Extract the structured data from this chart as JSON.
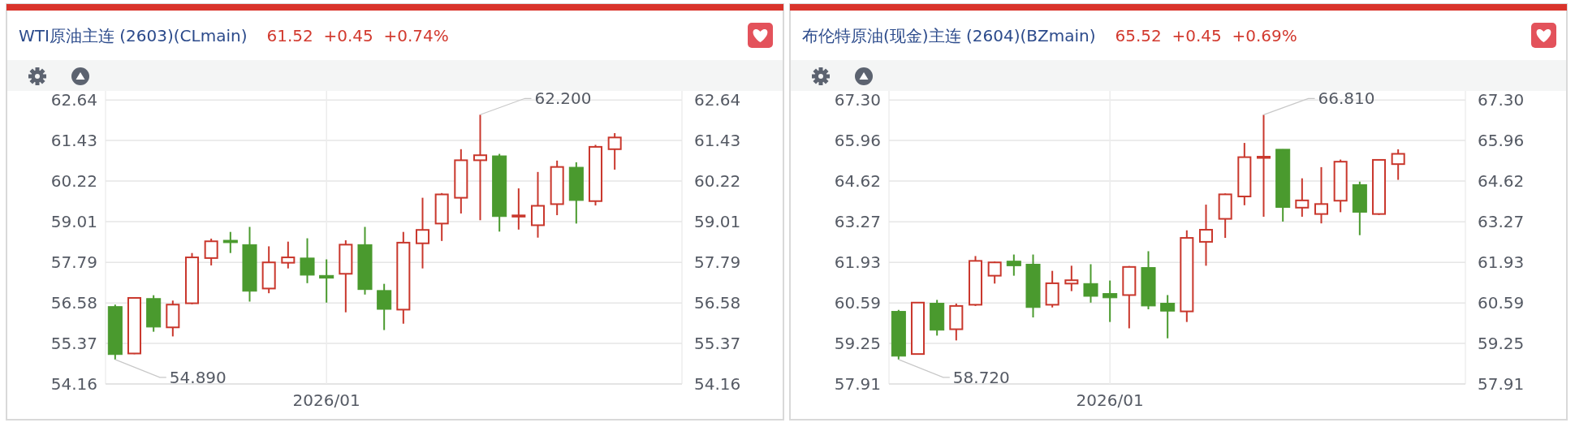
{
  "chart_data": [
    {
      "type": "candlestick",
      "title": "WTI原油主连 (2603)(CLmain)",
      "subtitle": "61.52  +0.45  +0.74%",
      "annotations": [
        "62.200",
        "54.890"
      ],
      "categories": [
        null,
        null,
        null,
        null,
        null,
        null,
        null,
        null,
        null,
        null,
        null,
        "2026/01",
        null,
        null,
        null,
        null,
        null,
        null,
        null,
        null,
        null,
        null,
        null,
        null,
        null,
        null,
        null,
        null,
        null,
        null
      ],
      "ohlc": [
        [
          56.47,
          56.53,
          54.89,
          55.04
        ],
        [
          55.07,
          56.75,
          55.05,
          56.73
        ],
        [
          56.71,
          56.81,
          55.72,
          55.86
        ],
        [
          55.85,
          56.65,
          55.58,
          56.53
        ],
        [
          56.57,
          58.07,
          56.54,
          57.94
        ],
        [
          57.92,
          58.5,
          57.7,
          58.42
        ],
        [
          58.45,
          58.7,
          58.07,
          58.38
        ],
        [
          58.32,
          58.85,
          56.62,
          56.93
        ],
        [
          57.01,
          58.27,
          56.87,
          57.79
        ],
        [
          57.78,
          58.41,
          57.61,
          57.94
        ],
        [
          57.92,
          58.51,
          57.17,
          57.41
        ],
        [
          57.4,
          57.88,
          56.59,
          57.32
        ],
        [
          57.45,
          58.45,
          56.3,
          58.32
        ],
        [
          58.32,
          58.85,
          56.83,
          56.98
        ],
        [
          56.95,
          57.15,
          55.77,
          56.39
        ],
        [
          56.38,
          58.7,
          55.96,
          58.38
        ],
        [
          58.36,
          59.72,
          57.61,
          58.76
        ],
        [
          58.95,
          59.86,
          58.43,
          59.82
        ],
        [
          59.72,
          61.17,
          59.25,
          60.84
        ],
        [
          60.84,
          62.2,
          59.05,
          60.99
        ],
        [
          60.97,
          61.03,
          58.71,
          59.16
        ],
        [
          59.16,
          60.0,
          58.77,
          59.19
        ],
        [
          58.9,
          60.49,
          58.53,
          59.48
        ],
        [
          59.53,
          60.83,
          59.2,
          60.64
        ],
        [
          60.63,
          60.78,
          58.95,
          59.64
        ],
        [
          59.62,
          61.3,
          59.49,
          61.24
        ],
        [
          61.17,
          61.65,
          60.56,
          61.52
        ],
        null,
        null,
        null
      ],
      "colors": [
        "#4a9a2e",
        "#c9372c",
        "#4a9a2e",
        "#c9372c",
        "#c9372c",
        "#c9372c",
        "#4a9a2e",
        "#4a9a2e",
        "#c9372c",
        "#c9372c",
        "#4a9a2e",
        "#4a9a2e",
        "#c9372c",
        "#4a9a2e",
        "#4a9a2e",
        "#c9372c",
        "#c9372c",
        "#c9372c",
        "#c9372c",
        "#c9372c",
        "#4a9a2e",
        "#c9372c",
        "#c9372c",
        "#c9372c",
        "#4a9a2e",
        "#c9372c",
        "#c9372c",
        null,
        null,
        null
      ],
      "ylim": [
        54.16,
        62.91
      ],
      "yticks": [
        54.16,
        55.37,
        56.58,
        57.79,
        59.01,
        60.22,
        61.43,
        62.64
      ],
      "y2lim": [
        54.16,
        62.91
      ],
      "y2ticks": [
        54.16,
        55.37,
        56.58,
        57.79,
        59.01,
        60.22,
        61.43,
        62.64
      ],
      "grid": true
    },
    {
      "type": "candlestick",
      "title": "布伦特原油(现金)主连 (2604)(BZmain)",
      "subtitle": "65.52  +0.45  +0.69%",
      "annotations": [
        "66.810",
        "58.720"
      ],
      "categories": [
        null,
        null,
        null,
        null,
        null,
        null,
        null,
        null,
        null,
        null,
        null,
        "2026/01",
        null,
        null,
        null,
        null,
        null,
        null,
        null,
        null,
        null,
        null,
        null,
        null,
        null,
        null,
        null,
        null,
        null,
        null
      ],
      "ohlc": [
        [
          60.31,
          60.36,
          58.72,
          58.83
        ],
        [
          58.9,
          60.62,
          58.88,
          60.6
        ],
        [
          60.58,
          60.69,
          59.51,
          59.69
        ],
        [
          59.72,
          60.57,
          59.35,
          60.49
        ],
        [
          60.53,
          62.14,
          60.49,
          61.98
        ],
        [
          61.49,
          61.96,
          61.23,
          61.93
        ],
        [
          61.97,
          62.19,
          61.49,
          61.82
        ],
        [
          61.87,
          62.19,
          60.11,
          60.44
        ],
        [
          60.53,
          61.65,
          60.44,
          61.24
        ],
        [
          61.23,
          61.82,
          60.98,
          61.34
        ],
        [
          61.23,
          61.87,
          60.6,
          60.81
        ],
        [
          60.9,
          61.33,
          59.96,
          60.76
        ],
        [
          60.85,
          61.81,
          59.75,
          61.78
        ],
        [
          61.76,
          62.3,
          60.38,
          60.49
        ],
        [
          60.58,
          60.85,
          59.42,
          60.32
        ],
        [
          60.31,
          62.99,
          59.96,
          62.74
        ],
        [
          62.61,
          63.84,
          61.82,
          63.01
        ],
        [
          63.37,
          64.21,
          62.74,
          64.18
        ],
        [
          64.11,
          65.88,
          63.82,
          65.41
        ],
        [
          65.4,
          66.81,
          63.44,
          65.41
        ],
        [
          65.67,
          65.67,
          63.28,
          63.75
        ],
        [
          63.74,
          64.71,
          63.44,
          63.98
        ],
        [
          63.53,
          65.08,
          63.22,
          63.86
        ],
        [
          63.97,
          65.33,
          63.59,
          65.26
        ],
        [
          64.5,
          64.6,
          62.83,
          63.59
        ],
        [
          63.53,
          65.33,
          63.5,
          65.32
        ],
        [
          65.18,
          65.67,
          64.66,
          65.52
        ],
        null,
        null,
        null
      ],
      "colors": [
        "#4a9a2e",
        "#c9372c",
        "#4a9a2e",
        "#c9372c",
        "#c9372c",
        "#c9372c",
        "#4a9a2e",
        "#4a9a2e",
        "#c9372c",
        "#c9372c",
        "#4a9a2e",
        "#4a9a2e",
        "#c9372c",
        "#4a9a2e",
        "#4a9a2e",
        "#c9372c",
        "#c9372c",
        "#c9372c",
        "#c9372c",
        "#c9372c",
        "#4a9a2e",
        "#c9372c",
        "#c9372c",
        "#c9372c",
        "#4a9a2e",
        "#c9372c",
        "#c9372c",
        null,
        null,
        null
      ],
      "ylim": [
        57.91,
        67.6
      ],
      "yticks": [
        57.91,
        59.25,
        60.59,
        61.93,
        63.27,
        64.62,
        65.96,
        {
          "value": 67.3,
          "label": "67.30"
        }
      ],
      "y2lim": [
        57.91,
        67.6
      ],
      "y2ticks": [
        57.91,
        59.25,
        60.59,
        61.93,
        63.27,
        64.62,
        65.96,
        {
          "value": 67.3,
          "label": "67.30"
        }
      ],
      "grid": true
    }
  ]
}
